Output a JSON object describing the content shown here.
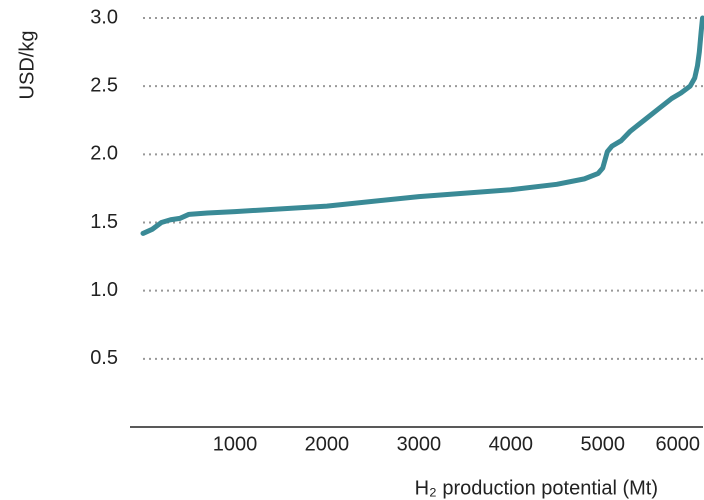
{
  "chart_data": {
    "type": "line",
    "y_label": "USD/kg",
    "x_label": "H₂ production potential (Mt)",
    "x": [
      0,
      100,
      200,
      300,
      400,
      500,
      700,
      1000,
      2000,
      3000,
      4000,
      4500,
      4800,
      4950,
      5000,
      5050,
      5100,
      5200,
      5300,
      5450,
      5600,
      5750,
      5850,
      5950,
      6000,
      6030,
      6050,
      6070,
      6085
    ],
    "series": [
      {
        "color": "#3a8a96",
        "values": [
          1.42,
          1.45,
          1.5,
          1.52,
          1.53,
          1.56,
          1.57,
          1.58,
          1.62,
          1.69,
          1.74,
          1.78,
          1.82,
          1.86,
          1.9,
          2.02,
          2.06,
          2.1,
          2.17,
          2.25,
          2.33,
          2.41,
          2.45,
          2.5,
          2.56,
          2.65,
          2.75,
          2.9,
          3.0
        ]
      }
    ],
    "xlim": [
      0,
      6090
    ],
    "xticks": [
      1000,
      2000,
      3000,
      4000,
      5000,
      6000
    ],
    "ylim": [
      0,
      3
    ],
    "yticks": [
      {
        "value": 0.5,
        "label": "0.5"
      },
      {
        "value": 1,
        "label": "1.0"
      },
      {
        "value": 1.5,
        "label": "1.5"
      },
      {
        "value": 2,
        "label": "2.0"
      },
      {
        "value": 2.5,
        "label": "2.5"
      },
      {
        "value": 3,
        "label": "3.0"
      }
    ],
    "grid": true
  }
}
